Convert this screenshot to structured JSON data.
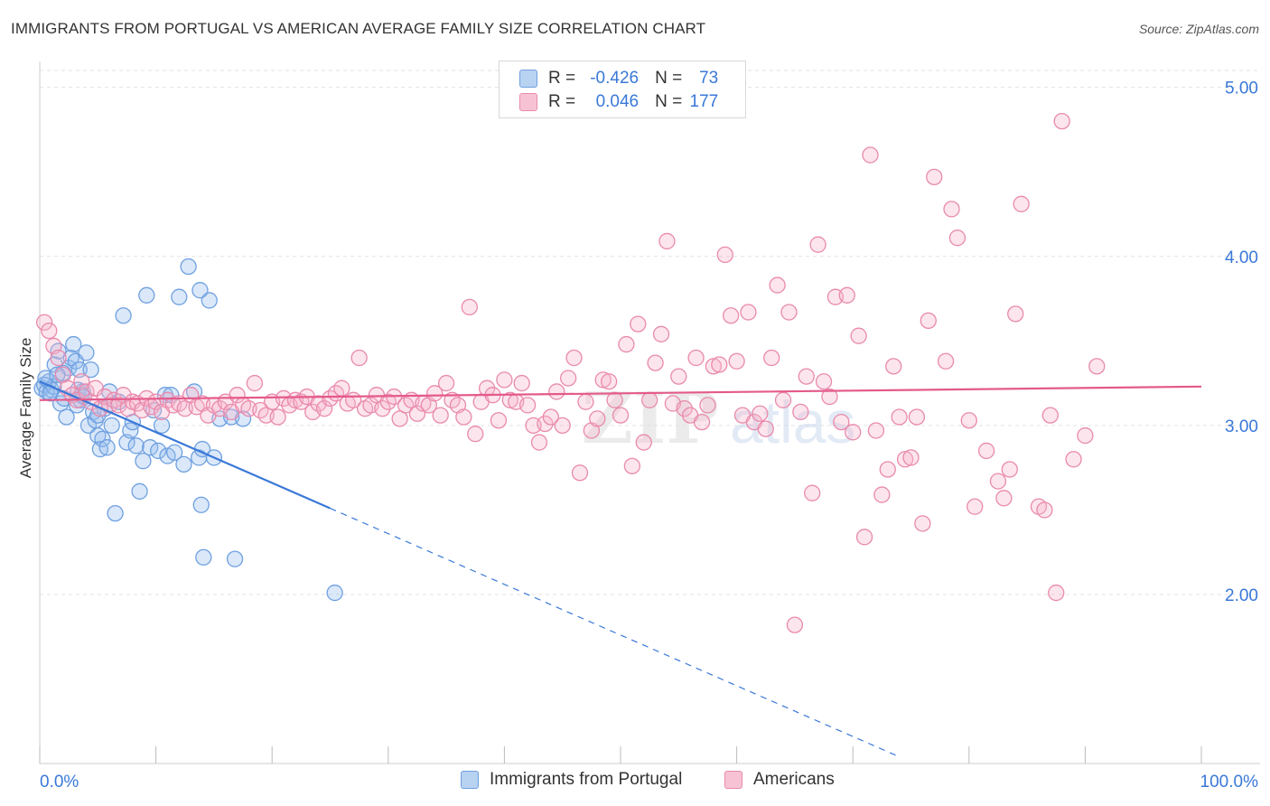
{
  "title": "IMMIGRANTS FROM PORTUGAL VS AMERICAN AVERAGE FAMILY SIZE CORRELATION CHART",
  "source": "Source: ZipAtlas.com",
  "watermark": "ZIPatlas",
  "legend": {
    "r_label": "R =",
    "n_label": "N =",
    "rows": [
      {
        "r": "-0.426",
        "n": "73",
        "color": "#6fa0e0",
        "fill": "#b8d2f2"
      },
      {
        "r": "0.046",
        "n": "177",
        "color": "#e98aac",
        "fill": "#f7c3d4"
      }
    ]
  },
  "bottom_legend": [
    "Immigrants from Portugal",
    "Americans"
  ],
  "chart_data": {
    "type": "scatter",
    "title": "IMMIGRANTS FROM PORTUGAL VS AMERICAN AVERAGE FAMILY SIZE CORRELATION CHART",
    "xlabel": "",
    "ylabel": "Average Family Size",
    "x_unit": "percent",
    "xlim": [
      0,
      100
    ],
    "ylim": [
      1.0,
      5.1
    ],
    "x_tick_labels": [
      {
        "value": 0,
        "label": "0.0%"
      },
      {
        "value": 100,
        "label": "100.0%"
      }
    ],
    "y_ticks": [
      2.0,
      3.0,
      4.0,
      5.0
    ],
    "y_tick_labels": [
      "2.00",
      "3.00",
      "4.00",
      "5.00"
    ],
    "grid": true,
    "legend_position": "top-center",
    "series": [
      {
        "name": "Immigrants from Portugal",
        "color": "#3a78d8",
        "marker_fill": "rgba(150,190,238,0.35)",
        "marker_stroke": "#6fa0e0",
        "trend": {
          "x0": 0,
          "y0": 3.26,
          "x1": 25,
          "y1": 2.51,
          "dashed_to_x": 74
        },
        "points": [
          [
            0.2,
            3.22
          ],
          [
            0.4,
            3.24
          ],
          [
            0.6,
            3.2
          ],
          [
            0.8,
            3.26
          ],
          [
            1.0,
            3.21
          ],
          [
            1.2,
            3.23
          ],
          [
            0.5,
            3.28
          ],
          [
            0.9,
            3.19
          ],
          [
            1.3,
            3.36
          ],
          [
            1.6,
            3.44
          ],
          [
            1.8,
            3.13
          ],
          [
            2.1,
            3.16
          ],
          [
            2.3,
            3.05
          ],
          [
            2.5,
            3.34
          ],
          [
            2.7,
            3.4
          ],
          [
            2.9,
            3.48
          ],
          [
            3.1,
            3.38
          ],
          [
            3.3,
            3.21
          ],
          [
            3.5,
            3.15
          ],
          [
            3.7,
            3.2
          ],
          [
            3.2,
            3.12
          ],
          [
            3.4,
            3.33
          ],
          [
            3.6,
            3.18
          ],
          [
            4.0,
            3.43
          ],
          [
            4.2,
            3.0
          ],
          [
            4.4,
            3.33
          ],
          [
            4.6,
            3.08
          ],
          [
            3.8,
            3.17
          ],
          [
            4.8,
            3.03
          ],
          [
            5.0,
            2.94
          ],
          [
            5.2,
            2.86
          ],
          [
            5.4,
            2.92
          ],
          [
            5.6,
            3.1
          ],
          [
            5.8,
            2.87
          ],
          [
            6.0,
            3.2
          ],
          [
            6.2,
            3.0
          ],
          [
            6.5,
            2.48
          ],
          [
            6.8,
            3.14
          ],
          [
            7.2,
            3.65
          ],
          [
            7.5,
            2.9
          ],
          [
            7.8,
            2.97
          ],
          [
            8.0,
            3.02
          ],
          [
            8.3,
            2.88
          ],
          [
            8.6,
            2.61
          ],
          [
            8.9,
            2.79
          ],
          [
            9.2,
            3.77
          ],
          [
            9.5,
            2.87
          ],
          [
            9.8,
            3.09
          ],
          [
            10.2,
            2.85
          ],
          [
            10.5,
            3.0
          ],
          [
            10.8,
            3.18
          ],
          [
            11.0,
            2.82
          ],
          [
            11.3,
            3.18
          ],
          [
            11.6,
            2.84
          ],
          [
            12.0,
            3.76
          ],
          [
            12.4,
            2.77
          ],
          [
            12.8,
            3.94
          ],
          [
            13.3,
            3.2
          ],
          [
            13.7,
            2.81
          ],
          [
            14.0,
            2.86
          ],
          [
            14.6,
            3.74
          ],
          [
            15.0,
            2.81
          ],
          [
            15.5,
            3.04
          ],
          [
            16.5,
            3.05
          ],
          [
            17.5,
            3.04
          ],
          [
            14.1,
            2.22
          ],
          [
            13.8,
            3.8
          ],
          [
            13.9,
            2.53
          ],
          [
            16.8,
            2.21
          ],
          [
            25.4,
            2.01
          ],
          [
            2.0,
            3.31
          ],
          [
            5.0,
            3.06
          ],
          [
            1.5,
            3.3
          ]
        ]
      },
      {
        "name": "Americans",
        "color": "#e45a8a",
        "marker_fill": "rgba(245,180,204,0.35)",
        "marker_stroke": "#e98aac",
        "trend": {
          "x0": 0,
          "y0": 3.15,
          "x1": 100,
          "y1": 3.23
        },
        "points": [
          [
            0.4,
            3.61
          ],
          [
            0.8,
            3.56
          ],
          [
            1.2,
            3.47
          ],
          [
            1.6,
            3.4
          ],
          [
            2.0,
            3.3
          ],
          [
            2.4,
            3.22
          ],
          [
            2.8,
            3.18
          ],
          [
            3.2,
            3.15
          ],
          [
            3.6,
            3.26
          ],
          [
            4.0,
            3.2
          ],
          [
            4.4,
            3.14
          ],
          [
            4.8,
            3.22
          ],
          [
            5.2,
            3.1
          ],
          [
            5.6,
            3.17
          ],
          [
            6.0,
            3.12
          ],
          [
            6.4,
            3.15
          ],
          [
            6.8,
            3.12
          ],
          [
            7.2,
            3.18
          ],
          [
            7.6,
            3.1
          ],
          [
            8.0,
            3.14
          ],
          [
            8.4,
            3.13
          ],
          [
            8.8,
            3.09
          ],
          [
            9.2,
            3.16
          ],
          [
            9.6,
            3.11
          ],
          [
            10.0,
            3.14
          ],
          [
            10.5,
            3.08
          ],
          [
            11.0,
            3.15
          ],
          [
            11.5,
            3.12
          ],
          [
            12.0,
            3.13
          ],
          [
            12.5,
            3.1
          ],
          [
            13.0,
            3.18
          ],
          [
            13.5,
            3.11
          ],
          [
            14.0,
            3.13
          ],
          [
            14.5,
            3.06
          ],
          [
            15.0,
            3.12
          ],
          [
            15.5,
            3.1
          ],
          [
            16.0,
            3.14
          ],
          [
            16.5,
            3.08
          ],
          [
            17.0,
            3.18
          ],
          [
            17.5,
            3.12
          ],
          [
            18.0,
            3.1
          ],
          [
            18.5,
            3.25
          ],
          [
            19.0,
            3.09
          ],
          [
            19.5,
            3.06
          ],
          [
            20.0,
            3.14
          ],
          [
            20.5,
            3.05
          ],
          [
            21.0,
            3.16
          ],
          [
            21.5,
            3.12
          ],
          [
            22.0,
            3.15
          ],
          [
            22.5,
            3.14
          ],
          [
            23.0,
            3.17
          ],
          [
            23.5,
            3.08
          ],
          [
            24.0,
            3.13
          ],
          [
            24.5,
            3.1
          ],
          [
            25.0,
            3.16
          ],
          [
            25.5,
            3.19
          ],
          [
            26.0,
            3.22
          ],
          [
            26.5,
            3.13
          ],
          [
            27.0,
            3.15
          ],
          [
            27.5,
            3.4
          ],
          [
            28.0,
            3.1
          ],
          [
            28.5,
            3.12
          ],
          [
            29.0,
            3.18
          ],
          [
            29.5,
            3.1
          ],
          [
            30.0,
            3.14
          ],
          [
            30.5,
            3.17
          ],
          [
            31.0,
            3.04
          ],
          [
            31.5,
            3.12
          ],
          [
            32.0,
            3.15
          ],
          [
            32.5,
            3.07
          ],
          [
            33.0,
            3.13
          ],
          [
            33.5,
            3.12
          ],
          [
            34.0,
            3.19
          ],
          [
            34.5,
            3.06
          ],
          [
            35.0,
            3.25
          ],
          [
            35.5,
            3.15
          ],
          [
            36.0,
            3.12
          ],
          [
            36.5,
            3.05
          ],
          [
            37.0,
            3.7
          ],
          [
            37.5,
            2.95
          ],
          [
            38.0,
            3.14
          ],
          [
            38.5,
            3.22
          ],
          [
            39.0,
            3.18
          ],
          [
            39.5,
            3.03
          ],
          [
            40.0,
            3.27
          ],
          [
            40.5,
            3.15
          ],
          [
            41.0,
            3.14
          ],
          [
            41.5,
            3.25
          ],
          [
            42.0,
            3.12
          ],
          [
            42.5,
            3.0
          ],
          [
            43.0,
            2.9
          ],
          [
            43.5,
            3.01
          ],
          [
            44.0,
            3.05
          ],
          [
            44.5,
            3.2
          ],
          [
            45.0,
            3.0
          ],
          [
            45.5,
            3.28
          ],
          [
            46.0,
            3.4
          ],
          [
            46.5,
            2.72
          ],
          [
            47.0,
            3.14
          ],
          [
            47.5,
            2.97
          ],
          [
            48.0,
            3.04
          ],
          [
            48.5,
            3.27
          ],
          [
            49.0,
            3.26
          ],
          [
            49.5,
            3.15
          ],
          [
            50.0,
            3.06
          ],
          [
            50.5,
            3.48
          ],
          [
            51.0,
            2.76
          ],
          [
            51.5,
            3.6
          ],
          [
            52.0,
            2.9
          ],
          [
            52.5,
            3.15
          ],
          [
            53.0,
            3.37
          ],
          [
            53.5,
            3.54
          ],
          [
            54.0,
            4.09
          ],
          [
            54.5,
            3.13
          ],
          [
            55.0,
            3.29
          ],
          [
            55.5,
            3.1
          ],
          [
            56.0,
            3.06
          ],
          [
            56.5,
            3.4
          ],
          [
            57.0,
            3.02
          ],
          [
            57.5,
            3.12
          ],
          [
            58.0,
            3.35
          ],
          [
            58.5,
            3.36
          ],
          [
            59.0,
            4.01
          ],
          [
            59.5,
            3.65
          ],
          [
            60.0,
            3.38
          ],
          [
            60.5,
            3.06
          ],
          [
            61.0,
            3.67
          ],
          [
            61.5,
            3.02
          ],
          [
            62.0,
            3.07
          ],
          [
            62.5,
            2.98
          ],
          [
            63.0,
            3.4
          ],
          [
            63.5,
            3.83
          ],
          [
            64.0,
            3.15
          ],
          [
            64.5,
            3.67
          ],
          [
            65.0,
            1.82
          ],
          [
            65.5,
            3.08
          ],
          [
            66.0,
            3.29
          ],
          [
            66.5,
            2.6
          ],
          [
            67.0,
            4.07
          ],
          [
            67.5,
            3.26
          ],
          [
            68.0,
            3.17
          ],
          [
            68.5,
            3.76
          ],
          [
            69.0,
            3.02
          ],
          [
            69.5,
            3.77
          ],
          [
            70.0,
            2.96
          ],
          [
            70.5,
            3.53
          ],
          [
            71.0,
            2.34
          ],
          [
            71.5,
            4.6
          ],
          [
            72.0,
            2.97
          ],
          [
            72.5,
            2.59
          ],
          [
            73.0,
            2.74
          ],
          [
            73.5,
            3.35
          ],
          [
            74.0,
            3.05
          ],
          [
            74.5,
            2.8
          ],
          [
            75.0,
            2.81
          ],
          [
            75.5,
            3.05
          ],
          [
            76.0,
            2.42
          ],
          [
            76.5,
            3.62
          ],
          [
            77.0,
            4.47
          ],
          [
            78.0,
            3.38
          ],
          [
            78.5,
            4.28
          ],
          [
            79.0,
            4.11
          ],
          [
            80.0,
            3.03
          ],
          [
            80.5,
            2.52
          ],
          [
            81.5,
            2.85
          ],
          [
            82.5,
            2.67
          ],
          [
            83.0,
            2.57
          ],
          [
            83.5,
            2.74
          ],
          [
            84.0,
            3.66
          ],
          [
            84.5,
            4.31
          ],
          [
            86.0,
            2.52
          ],
          [
            86.5,
            2.5
          ],
          [
            87.0,
            3.06
          ],
          [
            87.5,
            2.01
          ],
          [
            88.0,
            4.8
          ],
          [
            89.0,
            2.8
          ],
          [
            90.0,
            2.94
          ],
          [
            91.0,
            3.35
          ]
        ]
      }
    ]
  }
}
